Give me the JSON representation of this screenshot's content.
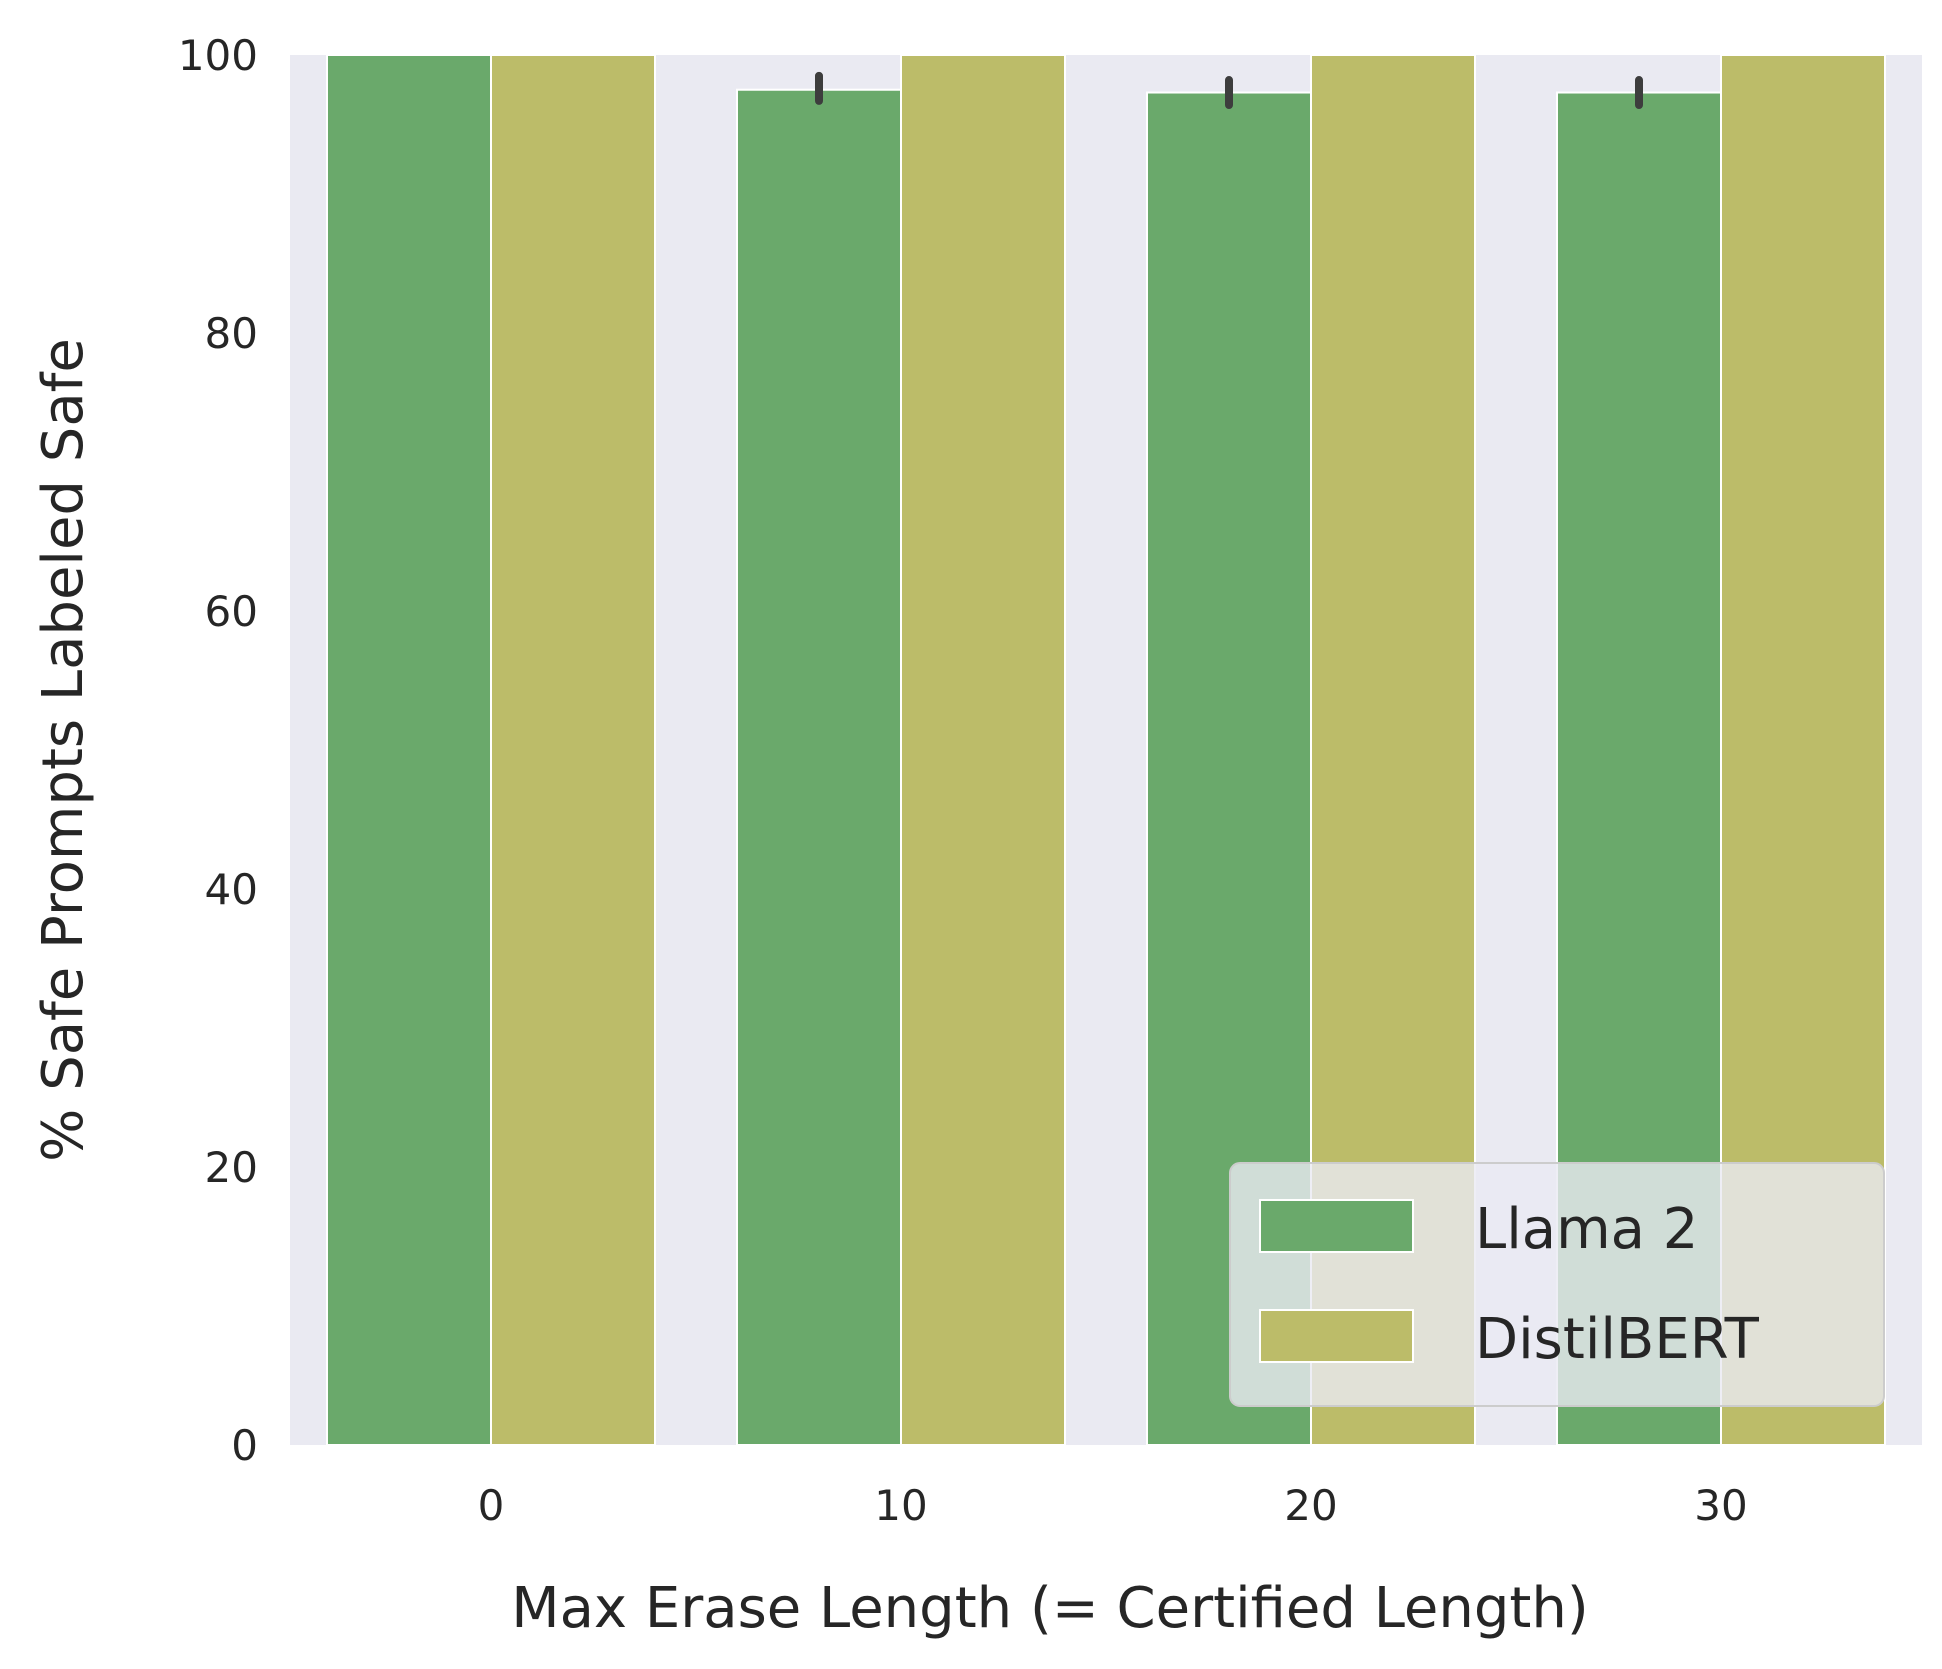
{
  "chart_data": {
    "type": "bar",
    "title": "",
    "xlabel": "Max Erase Length (= Certified Length)",
    "ylabel": "% Safe Prompts Labeled Safe",
    "categories": [
      "0",
      "10",
      "20",
      "30"
    ],
    "ylim": [
      0,
      100
    ],
    "yticks": [
      "0",
      "20",
      "40",
      "60",
      "80",
      "100"
    ],
    "series": [
      {
        "name": "Llama 2",
        "values": [
          100,
          97.5,
          97.3,
          97.3
        ],
        "error_low": [
          100,
          96.7,
          96.4,
          96.4
        ],
        "error_high": [
          100,
          98.5,
          98.2,
          98.2
        ],
        "color": "#6aa96b"
      },
      {
        "name": "DistilBERT",
        "values": [
          100,
          100,
          100,
          100
        ],
        "color": "#bcbc69"
      }
    ],
    "grid": false,
    "legend_position": "lower-right",
    "background": "#eaeaf2"
  }
}
